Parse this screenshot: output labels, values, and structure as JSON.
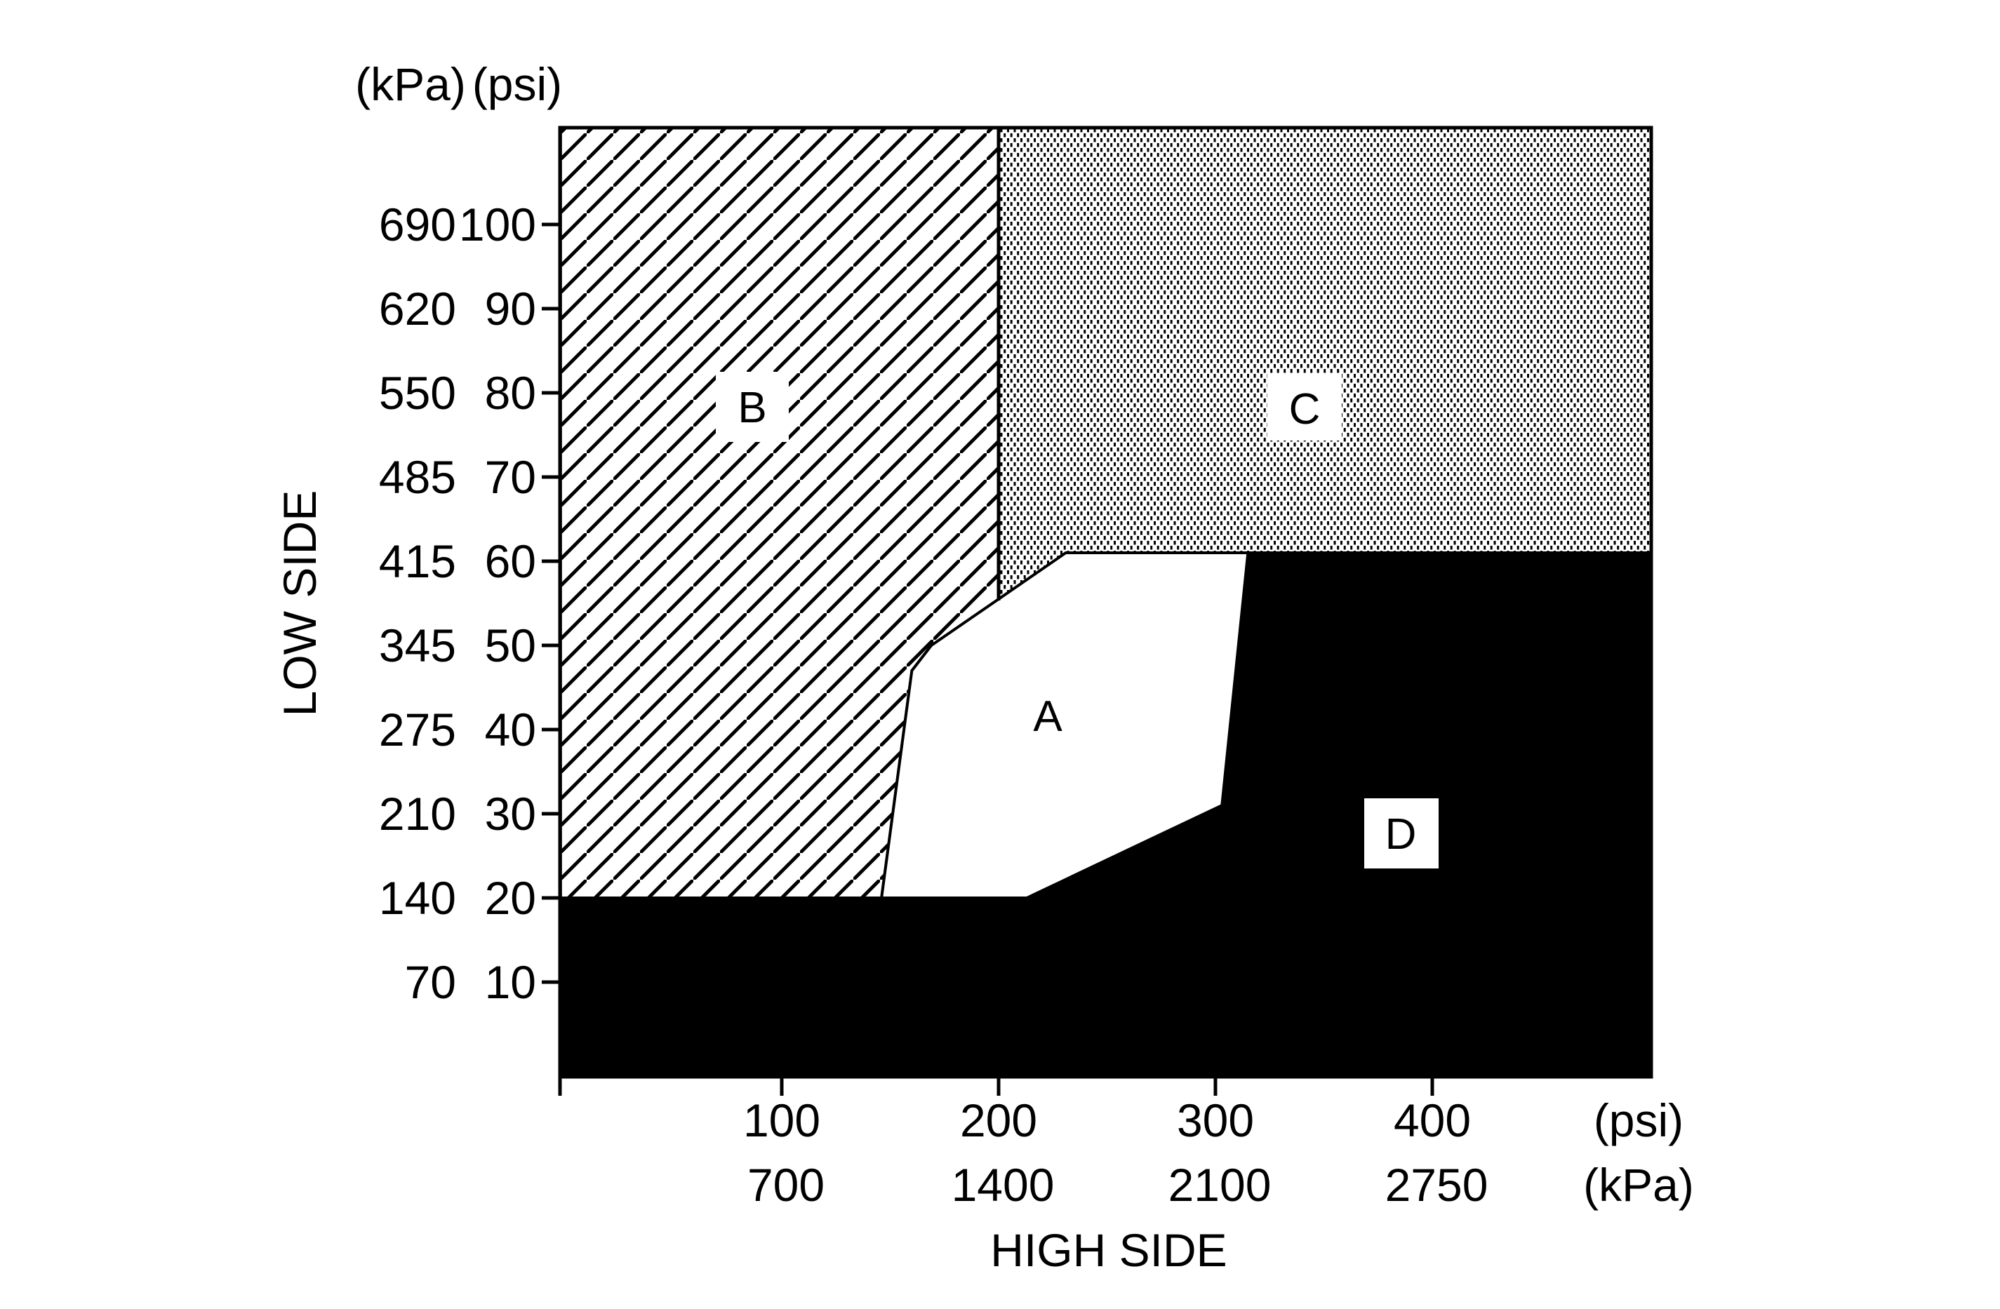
{
  "figure": {
    "top_headers": {
      "kpa": "(kPa)",
      "psi": "(psi)"
    },
    "y_axis_title": "LOW SIDE",
    "x_axis_title": "HIGH SIDE",
    "x_unit_right_psi": "(psi)",
    "x_unit_right_kpa": "(kPa)"
  },
  "chart_data": {
    "type": "area",
    "title": "",
    "xlabel": "HIGH SIDE",
    "ylabel": "LOW SIDE",
    "x_axis": {
      "unit_rows": [
        {
          "unit": "(psi)",
          "ticks": [
            100,
            200,
            300,
            400
          ]
        },
        {
          "unit": "(kPa)",
          "ticks": [
            700,
            1400,
            2100,
            2750
          ]
        }
      ],
      "range_psi": [
        0,
        500
      ],
      "grid": false
    },
    "y_axis": {
      "unit_cols": [
        {
          "unit": "(kPa)",
          "ticks": [
            690,
            620,
            550,
            485,
            415,
            345,
            275,
            210,
            140,
            70
          ]
        },
        {
          "unit": "(psi)",
          "ticks": [
            100,
            90,
            80,
            70,
            60,
            50,
            40,
            30,
            20,
            10
          ]
        }
      ],
      "range_psi": [
        0,
        111
      ],
      "grid": false
    },
    "regions": [
      {
        "label": "A",
        "fill": "white",
        "vertices_psi": [
          [
            231,
            61
          ],
          [
            315,
            61
          ],
          [
            303,
            31
          ],
          [
            213,
            20
          ],
          [
            146,
            20
          ],
          [
            160,
            47
          ],
          [
            169,
            50
          ]
        ]
      },
      {
        "label": "B",
        "fill": "diagonal-hatch",
        "vertices_psi": [
          [
            -2,
            111.5
          ],
          [
            200,
            111.5
          ],
          [
            200,
            55.3
          ],
          [
            169,
            50
          ],
          [
            160,
            47
          ],
          [
            146,
            20
          ],
          [
            -2,
            20
          ]
        ]
      },
      {
        "label": "C",
        "fill": "dot-stipple",
        "vertices_psi": [
          [
            200,
            111.5
          ],
          [
            501,
            111.5
          ],
          [
            501,
            61
          ],
          [
            231,
            61
          ],
          [
            200,
            55.3
          ]
        ]
      },
      {
        "label": "D",
        "fill": "solid-black",
        "vertices_psi": [
          [
            -2,
            -1.2
          ],
          [
            501,
            -1.2
          ],
          [
            501,
            61
          ],
          [
            315,
            61
          ],
          [
            303,
            31
          ],
          [
            213,
            20
          ],
          [
            146,
            20
          ],
          [
            160,
            47
          ],
          [
            169,
            50
          ],
          [
            200,
            55.3
          ],
          [
            200,
            20
          ],
          [
            -2,
            20
          ]
        ]
      }
    ],
    "region_label_positions_psi": {
      "A": [
        222.7,
        41.7
      ],
      "B": [
        86.4,
        78.5
      ],
      "C": [
        340.8,
        78.3
      ],
      "D": [
        385.4,
        27.8
      ]
    },
    "legend": null,
    "annotations": []
  }
}
